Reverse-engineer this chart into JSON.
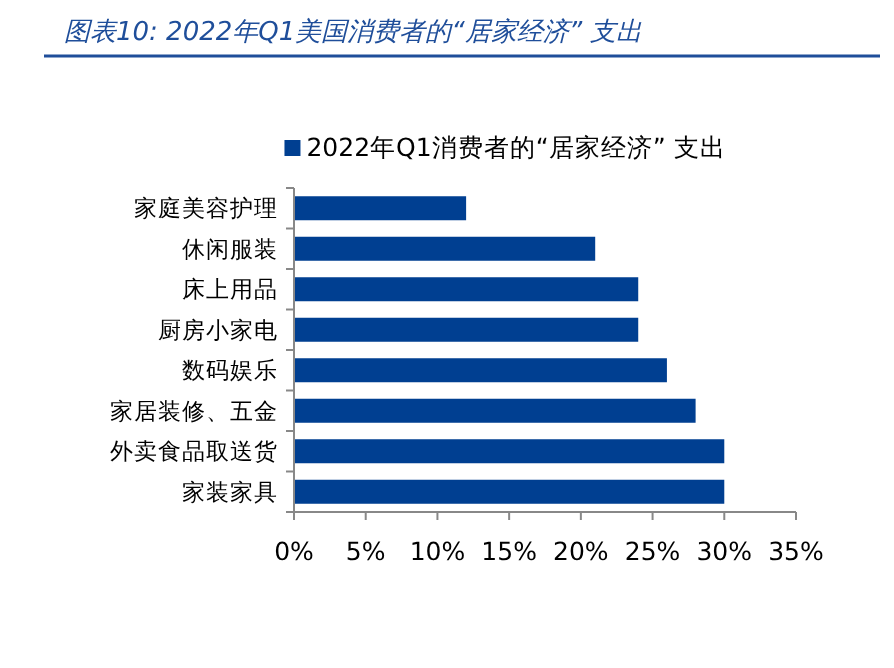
{
  "chart_data": {
    "type": "bar",
    "orientation": "horizontal",
    "title": "图表10:  2022年Q1美国消费者的“居家经济”  支出",
    "categories": [
      "家庭美容护理",
      "休闲服装",
      "床上用品",
      "厨房小家电",
      "数码娱乐",
      "家居装修、五金",
      "外卖食品取送货",
      "家装家具"
    ],
    "series": [
      {
        "name": "2022年Q1消费者的“居家经济” 支出",
        "color": "#003f91",
        "values": [
          12,
          21,
          24,
          24,
          26,
          28,
          30,
          30
        ]
      }
    ],
    "xlim": [
      0,
      35
    ],
    "xticks": [
      {
        "value": 0,
        "label": "0%"
      },
      {
        "value": 5,
        "label": "5%"
      },
      {
        "value": 10,
        "label": "10%"
      },
      {
        "value": 15,
        "label": "15%"
      },
      {
        "value": 20,
        "label": "20%"
      },
      {
        "value": 25,
        "label": "25%"
      },
      {
        "value": 30,
        "label": "30%"
      },
      {
        "value": 35,
        "label": "35%"
      }
    ],
    "grid": false,
    "legend": "top"
  }
}
